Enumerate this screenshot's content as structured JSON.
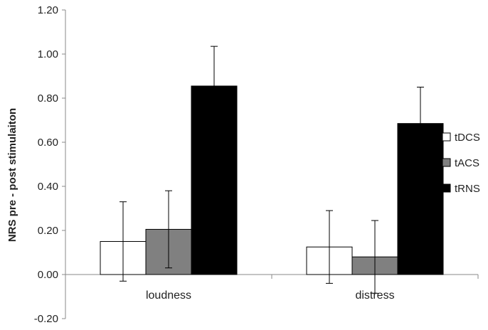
{
  "chart_data": {
    "type": "bar",
    "categories": [
      "loudness",
      "distress"
    ],
    "ylabel": "NRS pre - post stimulaiton",
    "xlabel": "",
    "ylim": [
      -0.2,
      1.2
    ],
    "yticks": [
      "-0.20",
      "0.00",
      "0.20",
      "0.40",
      "0.60",
      "0.80",
      "1.00",
      "1.20"
    ],
    "grid": false,
    "legend_position": "right",
    "error_bars": true,
    "series": [
      {
        "name": "tDCS",
        "color": "#ffffff",
        "values": [
          0.15,
          0.125
        ],
        "errors": [
          0.18,
          0.165
        ]
      },
      {
        "name": "tACS",
        "color": "#808080",
        "values": [
          0.205,
          0.08
        ],
        "errors": [
          0.175,
          0.165
        ]
      },
      {
        "name": "tRNS",
        "color": "#000000",
        "values": [
          0.855,
          0.685
        ],
        "errors": [
          0.18,
          0.165
        ]
      }
    ]
  }
}
